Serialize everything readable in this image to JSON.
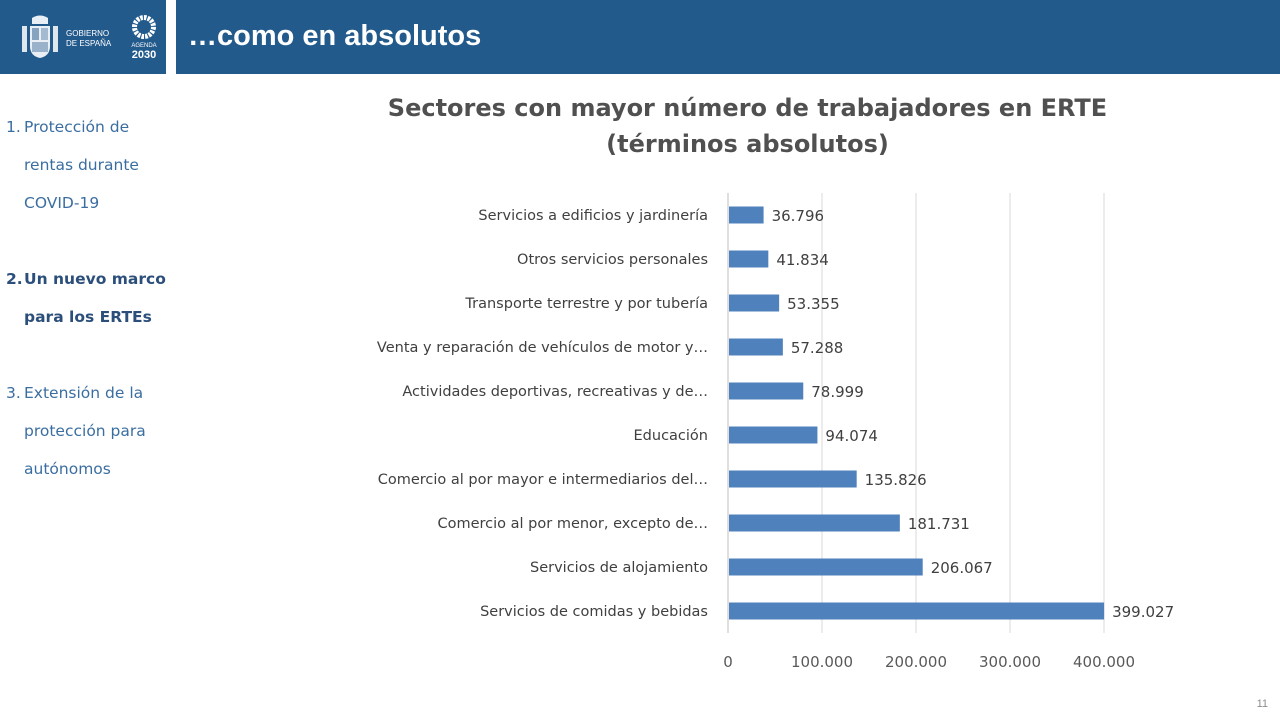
{
  "header": {
    "logo_gov_line1": "GOBIERNO",
    "logo_gov_line2": "DE ESPAÑA",
    "logo_agenda_line1": "AGENDA",
    "logo_agenda_line2": "2030",
    "title": "…como en absolutos",
    "brand_color": "#235a8c"
  },
  "nav": {
    "items": [
      {
        "num": "1.",
        "lines": [
          "Protección de",
          "rentas durante",
          "COVID-19"
        ],
        "active": false
      },
      {
        "num": "2.",
        "lines": [
          "Un nuevo marco",
          "para los ERTEs"
        ],
        "active": true
      },
      {
        "num": "3.",
        "lines": [
          "Extensión de la",
          "protección para",
          "autónomos"
        ],
        "active": false
      }
    ]
  },
  "chart_data": {
    "type": "bar",
    "orientation": "horizontal",
    "title": "Sectores con mayor número de trabajadores en ERTE",
    "subtitle": "(términos absolutos)",
    "categories": [
      "Servicios a edificios y jardinería",
      "Otros servicios personales",
      "Transporte terrestre y por tubería",
      "Venta y reparación de vehículos de motor y…",
      "Actividades deportivas, recreativas y de…",
      "Educación",
      "Comercio al por mayor e intermediarios del…",
      "Comercio al por menor, excepto de…",
      "Servicios de alojamiento",
      "Servicios de comidas y bebidas"
    ],
    "values": [
      36796,
      41834,
      53355,
      57288,
      78999,
      94074,
      135826,
      181731,
      206067,
      399027
    ],
    "value_labels": [
      "36.796",
      "41.834",
      "53.355",
      "57.288",
      "78.999",
      "94.074",
      "135.826",
      "181.731",
      "206.067",
      "399.027"
    ],
    "xlabel": "",
    "ylabel": "",
    "xlim": [
      0,
      400000
    ],
    "xticks": [
      0,
      100000,
      200000,
      300000,
      400000
    ],
    "xtick_labels": [
      "0",
      "100.000",
      "200.000",
      "300.000",
      "400.000"
    ],
    "grid": true,
    "legend": "none",
    "bar_color": "#4f81bd"
  },
  "footer": {
    "page_number": "11"
  }
}
